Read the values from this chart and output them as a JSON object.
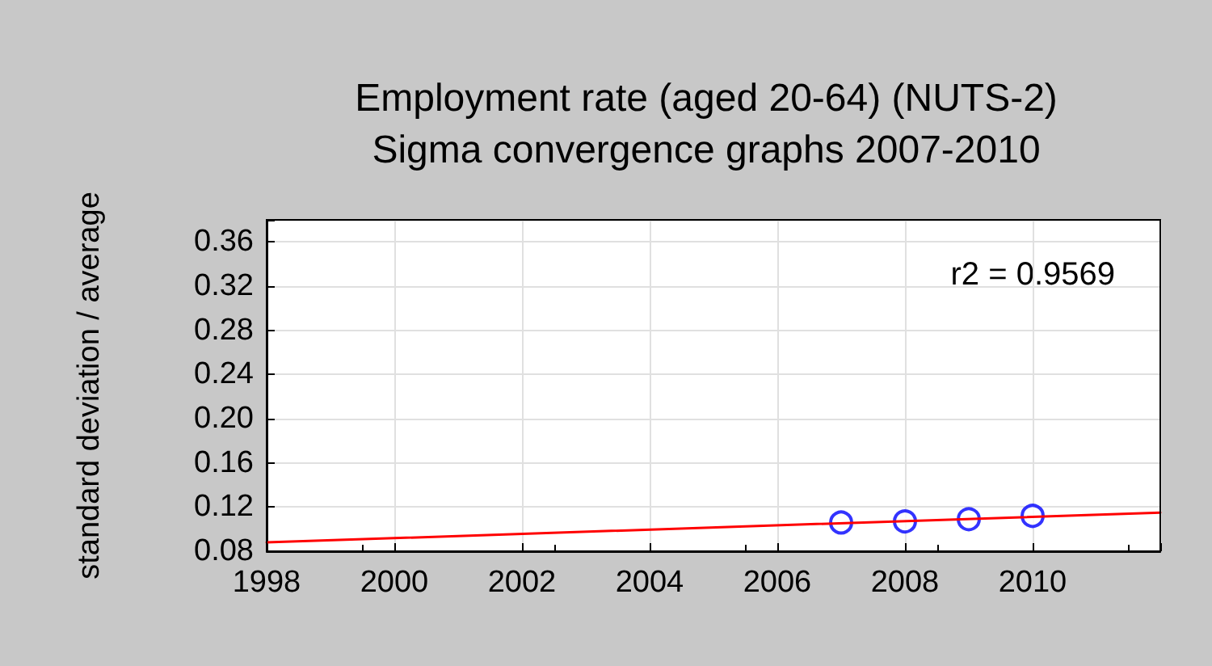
{
  "chart_data": {
    "type": "scatter",
    "title": "Employment rate (aged 20-64) (NUTS-2)",
    "subtitle": "Sigma convergence graphs 2007-2010",
    "ylabel": "standard deviation / average",
    "xlim": [
      1998,
      2012
    ],
    "xticks": [
      1998,
      2000,
      2002,
      2004,
      2006,
      2008,
      2010,
      {
        "value": 2012,
        "label": null
      }
    ],
    "ylim": [
      0.08,
      0.38
    ],
    "yticks": [
      0.08,
      0.12,
      0.16,
      {
        "value": 0.2,
        "label": "0.20"
      },
      0.24,
      0.28,
      0.32,
      0.36,
      {
        "value": 0.38,
        "label": null
      }
    ],
    "grid": true,
    "marker": "circle",
    "annotations": [
      "r2 = 0.9569"
    ],
    "series": [
      {
        "color": "#0000ff",
        "x": [
          2007,
          2008,
          2009,
          2010
        ],
        "values": [
          0.106,
          0.107,
          0.109,
          0.112
        ]
      },
      {
        "type": "line",
        "color": "#ff0000",
        "marker": "none",
        "x": [
          1998,
          2012
        ],
        "values": [
          0.088,
          0.115
        ]
      }
    ]
  }
}
